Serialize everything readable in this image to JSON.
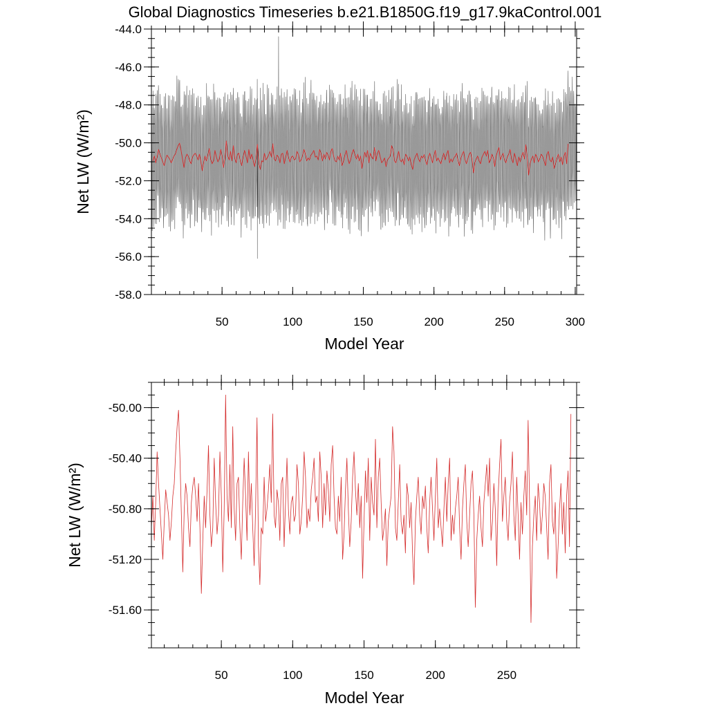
{
  "title": "Global Diagnostics Timeseries b.e21.B1850G.f19_g17.9kaControl.001",
  "colors": {
    "monthly": "#555555",
    "annual": "#d42a2a",
    "axis": "#000000"
  },
  "chart_data": [
    {
      "type": "line",
      "xlabel": "Model Year",
      "ylabel": "Net LW (W/m²)",
      "xlim": [
        0,
        301
      ],
      "ylim": [
        -58.0,
        -44.0
      ],
      "xticks": [
        50,
        100,
        150,
        200,
        250,
        300
      ],
      "xtick_labels": [
        "50",
        "100",
        "150",
        "200",
        "250",
        "300"
      ],
      "yticks": [
        -58.0,
        -56.0,
        -54.0,
        -52.0,
        -50.0,
        -48.0,
        -46.0,
        -44.0
      ],
      "ytick_labels": [
        "-58.0",
        "-56.0",
        "-54.0",
        "-52.0",
        "-50.0",
        "-48.0",
        "-46.0",
        "-44.0"
      ],
      "grid": false,
      "series": [
        {
          "resolution": "monthly",
          "color": "#555555",
          "x_start": 0.0417,
          "x_step": 0.0833,
          "count": 3612,
          "seasonal_mean": -50.8,
          "seasonal_amplitude": 3.0,
          "range": [
            -56.1,
            -44.4
          ],
          "notes_extremes": {
            "max_year": 90,
            "max_value": -44.4,
            "min_year": 75,
            "min_value": -56.1
          }
        },
        {
          "resolution": "annual",
          "color": "#d42a2a",
          "ref": "annual_means"
        }
      ]
    },
    {
      "type": "line",
      "xlabel": "Model Year",
      "ylabel": "Net LW (W/m²)",
      "xlim": [
        1,
        299
      ],
      "ylim": [
        -51.9,
        -49.8
      ],
      "xticks": [
        50,
        100,
        150,
        200,
        250
      ],
      "xtick_labels": [
        "50",
        "100",
        "150",
        "200",
        "250"
      ],
      "yticks": [
        -51.6,
        -51.2,
        -50.8,
        -50.4,
        -50.0
      ],
      "ytick_labels": [
        "-51.60",
        "-51.20",
        "-50.80",
        "-50.40",
        "-50.00"
      ],
      "grid": false,
      "series": [
        {
          "resolution": "annual",
          "color": "#d42a2a",
          "ref": "annual_means"
        }
      ]
    }
  ],
  "annual_means": {
    "x_start": 1,
    "x_step": 1,
    "values": [
      -50.95,
      -50.7,
      -51.05,
      -50.75,
      -50.35,
      -50.6,
      -50.8,
      -51.0,
      -51.2,
      -50.9,
      -50.65,
      -50.75,
      -50.85,
      -51.05,
      -50.9,
      -50.7,
      -50.6,
      -50.35,
      -50.15,
      -50.02,
      -50.4,
      -50.85,
      -51.3,
      -50.8,
      -50.6,
      -50.7,
      -50.95,
      -51.1,
      -50.75,
      -50.62,
      -50.55,
      -50.7,
      -50.9,
      -50.6,
      -50.95,
      -51.47,
      -51.05,
      -50.7,
      -50.95,
      -50.65,
      -50.3,
      -50.85,
      -51.1,
      -50.95,
      -50.4,
      -50.75,
      -51.0,
      -50.85,
      -50.35,
      -50.7,
      -51.3,
      -50.8,
      -49.9,
      -50.7,
      -50.9,
      -50.45,
      -50.95,
      -50.15,
      -50.8,
      -51.05,
      -50.6,
      -50.55,
      -50.95,
      -51.2,
      -50.75,
      -50.4,
      -50.7,
      -51.05,
      -50.35,
      -50.85,
      -50.6,
      -50.95,
      -51.25,
      -50.8,
      -50.08,
      -51.1,
      -51.4,
      -50.95,
      -51.0,
      -50.55,
      -50.9,
      -50.8,
      -50.65,
      -50.45,
      -50.75,
      -50.05,
      -50.85,
      -50.95,
      -50.65,
      -50.75,
      -51.05,
      -50.6,
      -50.55,
      -51.1,
      -50.75,
      -50.4,
      -50.8,
      -51.0,
      -50.75,
      -50.7,
      -50.9,
      -50.85,
      -50.45,
      -50.6,
      -51.0,
      -50.9,
      -50.7,
      -50.35,
      -50.55,
      -50.95,
      -50.8,
      -50.9,
      -50.65,
      -50.55,
      -50.4,
      -50.75,
      -50.7,
      -50.9,
      -50.35,
      -50.55,
      -50.95,
      -50.6,
      -50.85,
      -50.5,
      -50.65,
      -50.9,
      -50.45,
      -50.3,
      -50.7,
      -50.95,
      -51.0,
      -50.7,
      -50.9,
      -50.55,
      -51.2,
      -51.0,
      -50.65,
      -50.4,
      -50.8,
      -51.1,
      -50.9,
      -50.55,
      -50.35,
      -50.65,
      -50.85,
      -50.6,
      -50.95,
      -50.7,
      -51.35,
      -50.9,
      -50.5,
      -50.75,
      -50.4,
      -51.05,
      -50.55,
      -50.75,
      -50.85,
      -50.25,
      -50.95,
      -50.55,
      -50.4,
      -50.75,
      -51.05,
      -50.95,
      -50.8,
      -51.25,
      -50.9,
      -50.8,
      -50.7,
      -50.15,
      -50.35,
      -50.95,
      -51.05,
      -50.75,
      -50.45,
      -50.9,
      -51.0,
      -50.85,
      -51.15,
      -50.6,
      -50.7,
      -50.95,
      -50.75,
      -51.15,
      -51.4,
      -50.9,
      -50.7,
      -50.55,
      -50.85,
      -51.0,
      -50.7,
      -50.8,
      -50.62,
      -50.95,
      -51.15,
      -50.75,
      -50.55,
      -50.8,
      -51.05,
      -50.7,
      -50.4,
      -50.95,
      -50.8,
      -50.95,
      -51.1,
      -50.8,
      -50.55,
      -50.9,
      -50.6,
      -50.4,
      -51.05,
      -50.85,
      -51.0,
      -50.8,
      -50.7,
      -50.55,
      -50.95,
      -51.2,
      -50.8,
      -50.6,
      -50.45,
      -50.9,
      -51.1,
      -50.85,
      -50.6,
      -50.5,
      -50.85,
      -51.58,
      -51.05,
      -50.85,
      -50.7,
      -50.95,
      -51.1,
      -50.75,
      -50.6,
      -50.45,
      -50.7,
      -50.4,
      -51.05,
      -50.9,
      -50.6,
      -50.8,
      -51.25,
      -50.7,
      -50.45,
      -50.25,
      -50.9,
      -50.7,
      -50.55,
      -50.9,
      -51.05,
      -50.75,
      -50.6,
      -50.35,
      -50.85,
      -51.05,
      -50.55,
      -50.85,
      -51.2,
      -50.75,
      -51.0,
      -50.7,
      -50.5,
      -50.85,
      -50.1,
      -50.75,
      -51.7,
      -51.1,
      -50.85,
      -50.7,
      -51.05,
      -50.6,
      -50.75,
      -51.0,
      -50.85,
      -50.6,
      -50.7,
      -50.95,
      -51.2,
      -50.6,
      -50.45,
      -50.9,
      -51.0,
      -50.75,
      -51.35,
      -51.1,
      -50.8,
      -50.6,
      -51.0,
      -50.75,
      -51.15,
      -50.7,
      -50.5,
      -51.1,
      -50.05
    ]
  }
}
